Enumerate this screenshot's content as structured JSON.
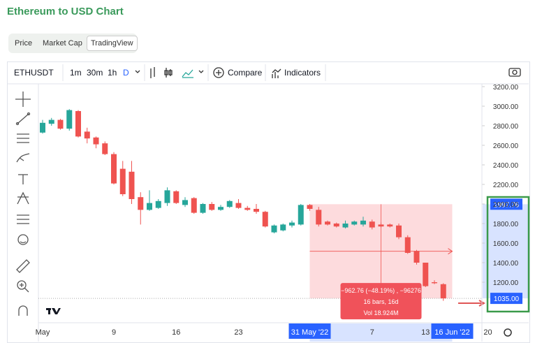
{
  "header": {
    "title": "Ethereum to USD Chart"
  },
  "tabs": [
    "Price",
    "Market Cap",
    "TradingView"
  ],
  "toolbar": {
    "symbol": "ETHUSDT",
    "intervals": [
      "1m",
      "30m",
      "1h",
      "D"
    ],
    "compare": "Compare",
    "indicators": "Indicators"
  },
  "chart_data": {
    "type": "candlestick",
    "categories": [
      "May",
      null,
      null,
      null,
      null,
      null,
      null,
      null,
      "9",
      null,
      null,
      null,
      null,
      null,
      null,
      "16",
      null,
      null,
      null,
      null,
      null,
      null,
      "23",
      null,
      null,
      null,
      null,
      null,
      null,
      null,
      "31 May '22",
      null,
      null,
      null,
      null,
      null,
      null,
      "7",
      null,
      null,
      null,
      null,
      null,
      "13",
      null,
      null,
      "16 Jun '22",
      null,
      null,
      null,
      "20"
    ],
    "open": [
      2730,
      2820,
      2860,
      2770,
      2950,
      2740,
      2680,
      2620,
      2510,
      2360,
      2330,
      2070,
      1940,
      1960,
      2010,
      2130,
      1990,
      2060,
      1910,
      2000,
      1940,
      1970,
      2010,
      1960,
      1950,
      1920,
      1710,
      1730,
      1780,
      1790,
      1990,
      1940,
      1820,
      1800,
      1760,
      1790,
      1790,
      1820,
      1790,
      1790,
      1780,
      1660,
      1520,
      1400,
      1200,
      1180,
      null,
      null,
      null,
      null,
      null
    ],
    "high": [
      2860,
      2880,
      2870,
      2970,
      2960,
      2780,
      2690,
      2640,
      2530,
      2440,
      2440,
      2120,
      2140,
      2050,
      2170,
      2140,
      2070,
      2070,
      2010,
      2020,
      1990,
      2040,
      2050,
      1980,
      2000,
      1930,
      1790,
      1800,
      1830,
      2000,
      2000,
      1970,
      1830,
      1810,
      1830,
      1830,
      1870,
      1840,
      1810,
      1800,
      1800,
      1680,
      1530,
      1400,
      1220,
      1190,
      null,
      null,
      null,
      null,
      null
    ],
    "low": [
      2720,
      2800,
      2760,
      2750,
      2680,
      2620,
      2570,
      2500,
      2200,
      2080,
      2000,
      1790,
      1930,
      1950,
      1980,
      2000,
      1970,
      1900,
      1900,
      1930,
      1930,
      1960,
      1950,
      1930,
      1900,
      1760,
      1700,
      1720,
      1760,
      1780,
      1930,
      1770,
      1780,
      1760,
      1750,
      1780,
      1770,
      1740,
      1760,
      1760,
      1640,
      1490,
      1380,
      1150,
      1180,
      1010,
      null,
      null,
      null,
      null,
      null
    ],
    "close": [
      2830,
      2860,
      2770,
      2960,
      2690,
      2670,
      2610,
      2510,
      2210,
      2100,
      2050,
      1940,
      2010,
      2030,
      2140,
      2010,
      2040,
      1910,
      2000,
      1940,
      1970,
      2030,
      1960,
      1940,
      1920,
      1770,
      1780,
      1790,
      1810,
      1990,
      1950,
      1790,
      1790,
      1770,
      1800,
      1820,
      1830,
      1760,
      1770,
      1770,
      1660,
      1500,
      1400,
      1160,
      1190,
      1035,
      null,
      null,
      null,
      null,
      null
    ],
    "up_color": "#26a69a",
    "down_color": "#ef5350",
    "ylim": [
      800,
      3250
    ],
    "yticks": [
      {
        "value": 1200,
        "label": "1200.00"
      },
      {
        "value": 1400,
        "label": "1400.00"
      },
      {
        "value": 1600,
        "label": "1600.00"
      },
      {
        "value": 1800,
        "label": "1800.00"
      },
      {
        "value": 2000,
        "label": "2000.00"
      },
      {
        "value": 2200,
        "label": "2200.00"
      },
      {
        "value": 2400,
        "label": "2400.00"
      },
      {
        "value": 2600,
        "label": "2600.00"
      },
      {
        "value": 2800,
        "label": "2800.00"
      },
      {
        "value": 3000,
        "label": "3000.00"
      },
      {
        "value": 3200,
        "label": "3200.00"
      }
    ],
    "measure": {
      "from": 30,
      "to": 46,
      "price_from": 1997.76,
      "price_to": {
        "value": 1035,
        "label": "1035.00"
      },
      "change_label": "−962.76 (−48.19%) , −96276",
      "bars_label": "16 bars, 16d",
      "volume_label": "Vol 18.924M"
    }
  }
}
